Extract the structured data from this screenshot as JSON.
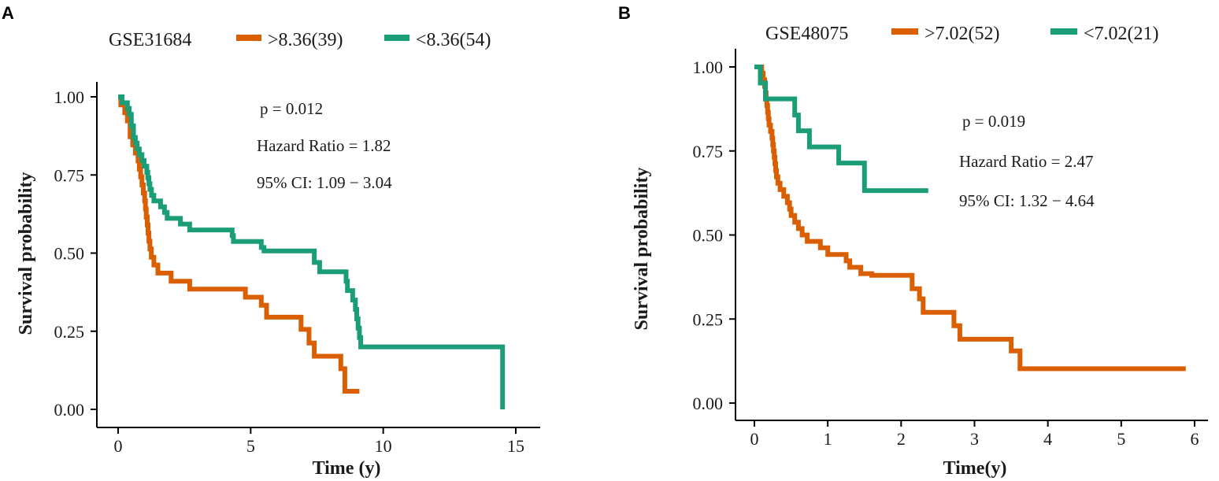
{
  "colors": {
    "high": "#d95f02",
    "low": "#1b9e77",
    "axis": "#000000"
  },
  "chart_data": [
    {
      "panel": "A",
      "type": "line",
      "subtype": "kaplan-meier",
      "dataset": "GSE31684",
      "xlabel": "Time (y)",
      "ylabel": "Survival probability",
      "xlim": [
        0,
        15
      ],
      "ylim": [
        0,
        1
      ],
      "xticks": [
        0,
        5,
        10,
        15
      ],
      "xtick_labels": [
        "0",
        "5",
        "10",
        "15"
      ],
      "yticks": [
        0,
        0.25,
        0.5,
        0.75,
        1
      ],
      "ytick_labels": [
        "0.00",
        "0.25",
        "0.50",
        "0.75",
        "1.00"
      ],
      "annotations": {
        "p": "p = 0.012",
        "hr": "Hazard Ratio = 1.82",
        "ci": "95% CI: 1.09 − 3.04"
      },
      "series": [
        {
          "name": ">8.36(39)",
          "group": "high",
          "steps": [
            [
              0,
              1
            ],
            [
              0.1,
              0.974
            ],
            [
              0.25,
              0.949
            ],
            [
              0.35,
              0.923
            ],
            [
              0.45,
              0.872
            ],
            [
              0.55,
              0.846
            ],
            [
              0.65,
              0.82
            ],
            [
              0.75,
              0.795
            ],
            [
              0.8,
              0.769
            ],
            [
              0.85,
              0.744
            ],
            [
              0.9,
              0.718
            ],
            [
              0.95,
              0.692
            ],
            [
              1.0,
              0.667
            ],
            [
              1.03,
              0.641
            ],
            [
              1.06,
              0.615
            ],
            [
              1.1,
              0.59
            ],
            [
              1.13,
              0.564
            ],
            [
              1.16,
              0.538
            ],
            [
              1.2,
              0.513
            ],
            [
              1.25,
              0.487
            ],
            [
              1.35,
              0.462
            ],
            [
              1.5,
              0.436
            ],
            [
              2.0,
              0.41
            ],
            [
              2.7,
              0.385
            ],
            [
              4.8,
              0.359
            ],
            [
              5.4,
              0.333
            ],
            [
              5.6,
              0.295
            ],
            [
              6.9,
              0.256
            ],
            [
              7.2,
              0.212
            ],
            [
              7.4,
              0.17
            ],
            [
              8.4,
              0.13
            ],
            [
              8.55,
              0.058
            ],
            [
              9.1,
              0.058
            ]
          ]
        },
        {
          "name": "<8.36(54)",
          "group": "low",
          "steps": [
            [
              0,
              1
            ],
            [
              0.15,
              0.981
            ],
            [
              0.35,
              0.963
            ],
            [
              0.42,
              0.944
            ],
            [
              0.5,
              0.907
            ],
            [
              0.58,
              0.87
            ],
            [
              0.65,
              0.852
            ],
            [
              0.72,
              0.833
            ],
            [
              0.8,
              0.815
            ],
            [
              0.9,
              0.796
            ],
            [
              0.98,
              0.778
            ],
            [
              1.08,
              0.759
            ],
            [
              1.12,
              0.741
            ],
            [
              1.16,
              0.722
            ],
            [
              1.2,
              0.704
            ],
            [
              1.26,
              0.685
            ],
            [
              1.35,
              0.667
            ],
            [
              1.6,
              0.648
            ],
            [
              1.75,
              0.63
            ],
            [
              1.85,
              0.611
            ],
            [
              2.2,
              0.611
            ],
            [
              2.35,
              0.593
            ],
            [
              2.6,
              0.593
            ],
            [
              2.7,
              0.574
            ],
            [
              3.5,
              0.574
            ],
            [
              4.3,
              0.556
            ],
            [
              4.35,
              0.537
            ],
            [
              5.4,
              0.518
            ],
            [
              5.5,
              0.507
            ],
            [
              7.4,
              0.47
            ],
            [
              7.6,
              0.44
            ],
            [
              8.5,
              0.44
            ],
            [
              8.6,
              0.41
            ],
            [
              8.65,
              0.38
            ],
            [
              8.85,
              0.35
            ],
            [
              8.95,
              0.32
            ],
            [
              9.0,
              0.29
            ],
            [
              9.05,
              0.26
            ],
            [
              9.1,
              0.23
            ],
            [
              9.15,
              0.2
            ],
            [
              14.5,
              0.0
            ]
          ]
        }
      ]
    },
    {
      "panel": "B",
      "type": "line",
      "subtype": "kaplan-meier",
      "dataset": "GSE48075",
      "xlabel": "Time(y)",
      "ylabel": "Survival probability",
      "xlim": [
        0,
        6
      ],
      "ylim": [
        0,
        1
      ],
      "xticks": [
        0,
        1,
        2,
        3,
        4,
        5,
        6
      ],
      "xtick_labels": [
        "0",
        "1",
        "2",
        "3",
        "4",
        "5",
        "6"
      ],
      "yticks": [
        0,
        0.25,
        0.5,
        0.75,
        1
      ],
      "ytick_labels": [
        "0.00",
        "0.25",
        "0.50",
        "0.75",
        "1.00"
      ],
      "annotations": {
        "p": "p = 0.019",
        "hr": "Hazard Ratio = 2.47",
        "ci": "95% CI: 1.32 − 4.64"
      },
      "series": [
        {
          "name": ">7.02(52)",
          "group": "high",
          "steps": [
            [
              0,
              1
            ],
            [
              0.1,
              0.981
            ],
            [
              0.12,
              0.962
            ],
            [
              0.14,
              0.942
            ],
            [
              0.15,
              0.923
            ],
            [
              0.16,
              0.904
            ],
            [
              0.17,
              0.885
            ],
            [
              0.18,
              0.865
            ],
            [
              0.19,
              0.846
            ],
            [
              0.2,
              0.827
            ],
            [
              0.22,
              0.808
            ],
            [
              0.24,
              0.788
            ],
            [
              0.25,
              0.769
            ],
            [
              0.26,
              0.75
            ],
            [
              0.27,
              0.731
            ],
            [
              0.28,
              0.712
            ],
            [
              0.29,
              0.692
            ],
            [
              0.3,
              0.673
            ],
            [
              0.32,
              0.654
            ],
            [
              0.35,
              0.635
            ],
            [
              0.4,
              0.615
            ],
            [
              0.45,
              0.596
            ],
            [
              0.48,
              0.577
            ],
            [
              0.5,
              0.558
            ],
            [
              0.55,
              0.538
            ],
            [
              0.6,
              0.519
            ],
            [
              0.65,
              0.5
            ],
            [
              0.72,
              0.481
            ],
            [
              0.9,
              0.462
            ],
            [
              1.0,
              0.442
            ],
            [
              1.25,
              0.423
            ],
            [
              1.3,
              0.404
            ],
            [
              1.45,
              0.385
            ],
            [
              1.6,
              0.38
            ],
            [
              2.15,
              0.34
            ],
            [
              2.25,
              0.31
            ],
            [
              2.3,
              0.27
            ],
            [
              2.72,
              0.23
            ],
            [
              2.8,
              0.19
            ],
            [
              3.5,
              0.155
            ],
            [
              3.62,
              0.102
            ],
            [
              5.88,
              0.102
            ]
          ]
        },
        {
          "name": "<7.02(21)",
          "group": "low",
          "steps": [
            [
              0,
              1
            ],
            [
              0.08,
              0.952
            ],
            [
              0.15,
              0.905
            ],
            [
              0.55,
              0.857
            ],
            [
              0.6,
              0.81
            ],
            [
              0.75,
              0.762
            ],
            [
              1.15,
              0.714
            ],
            [
              1.5,
              0.632
            ],
            [
              2.37,
              0.632
            ]
          ]
        }
      ]
    }
  ]
}
